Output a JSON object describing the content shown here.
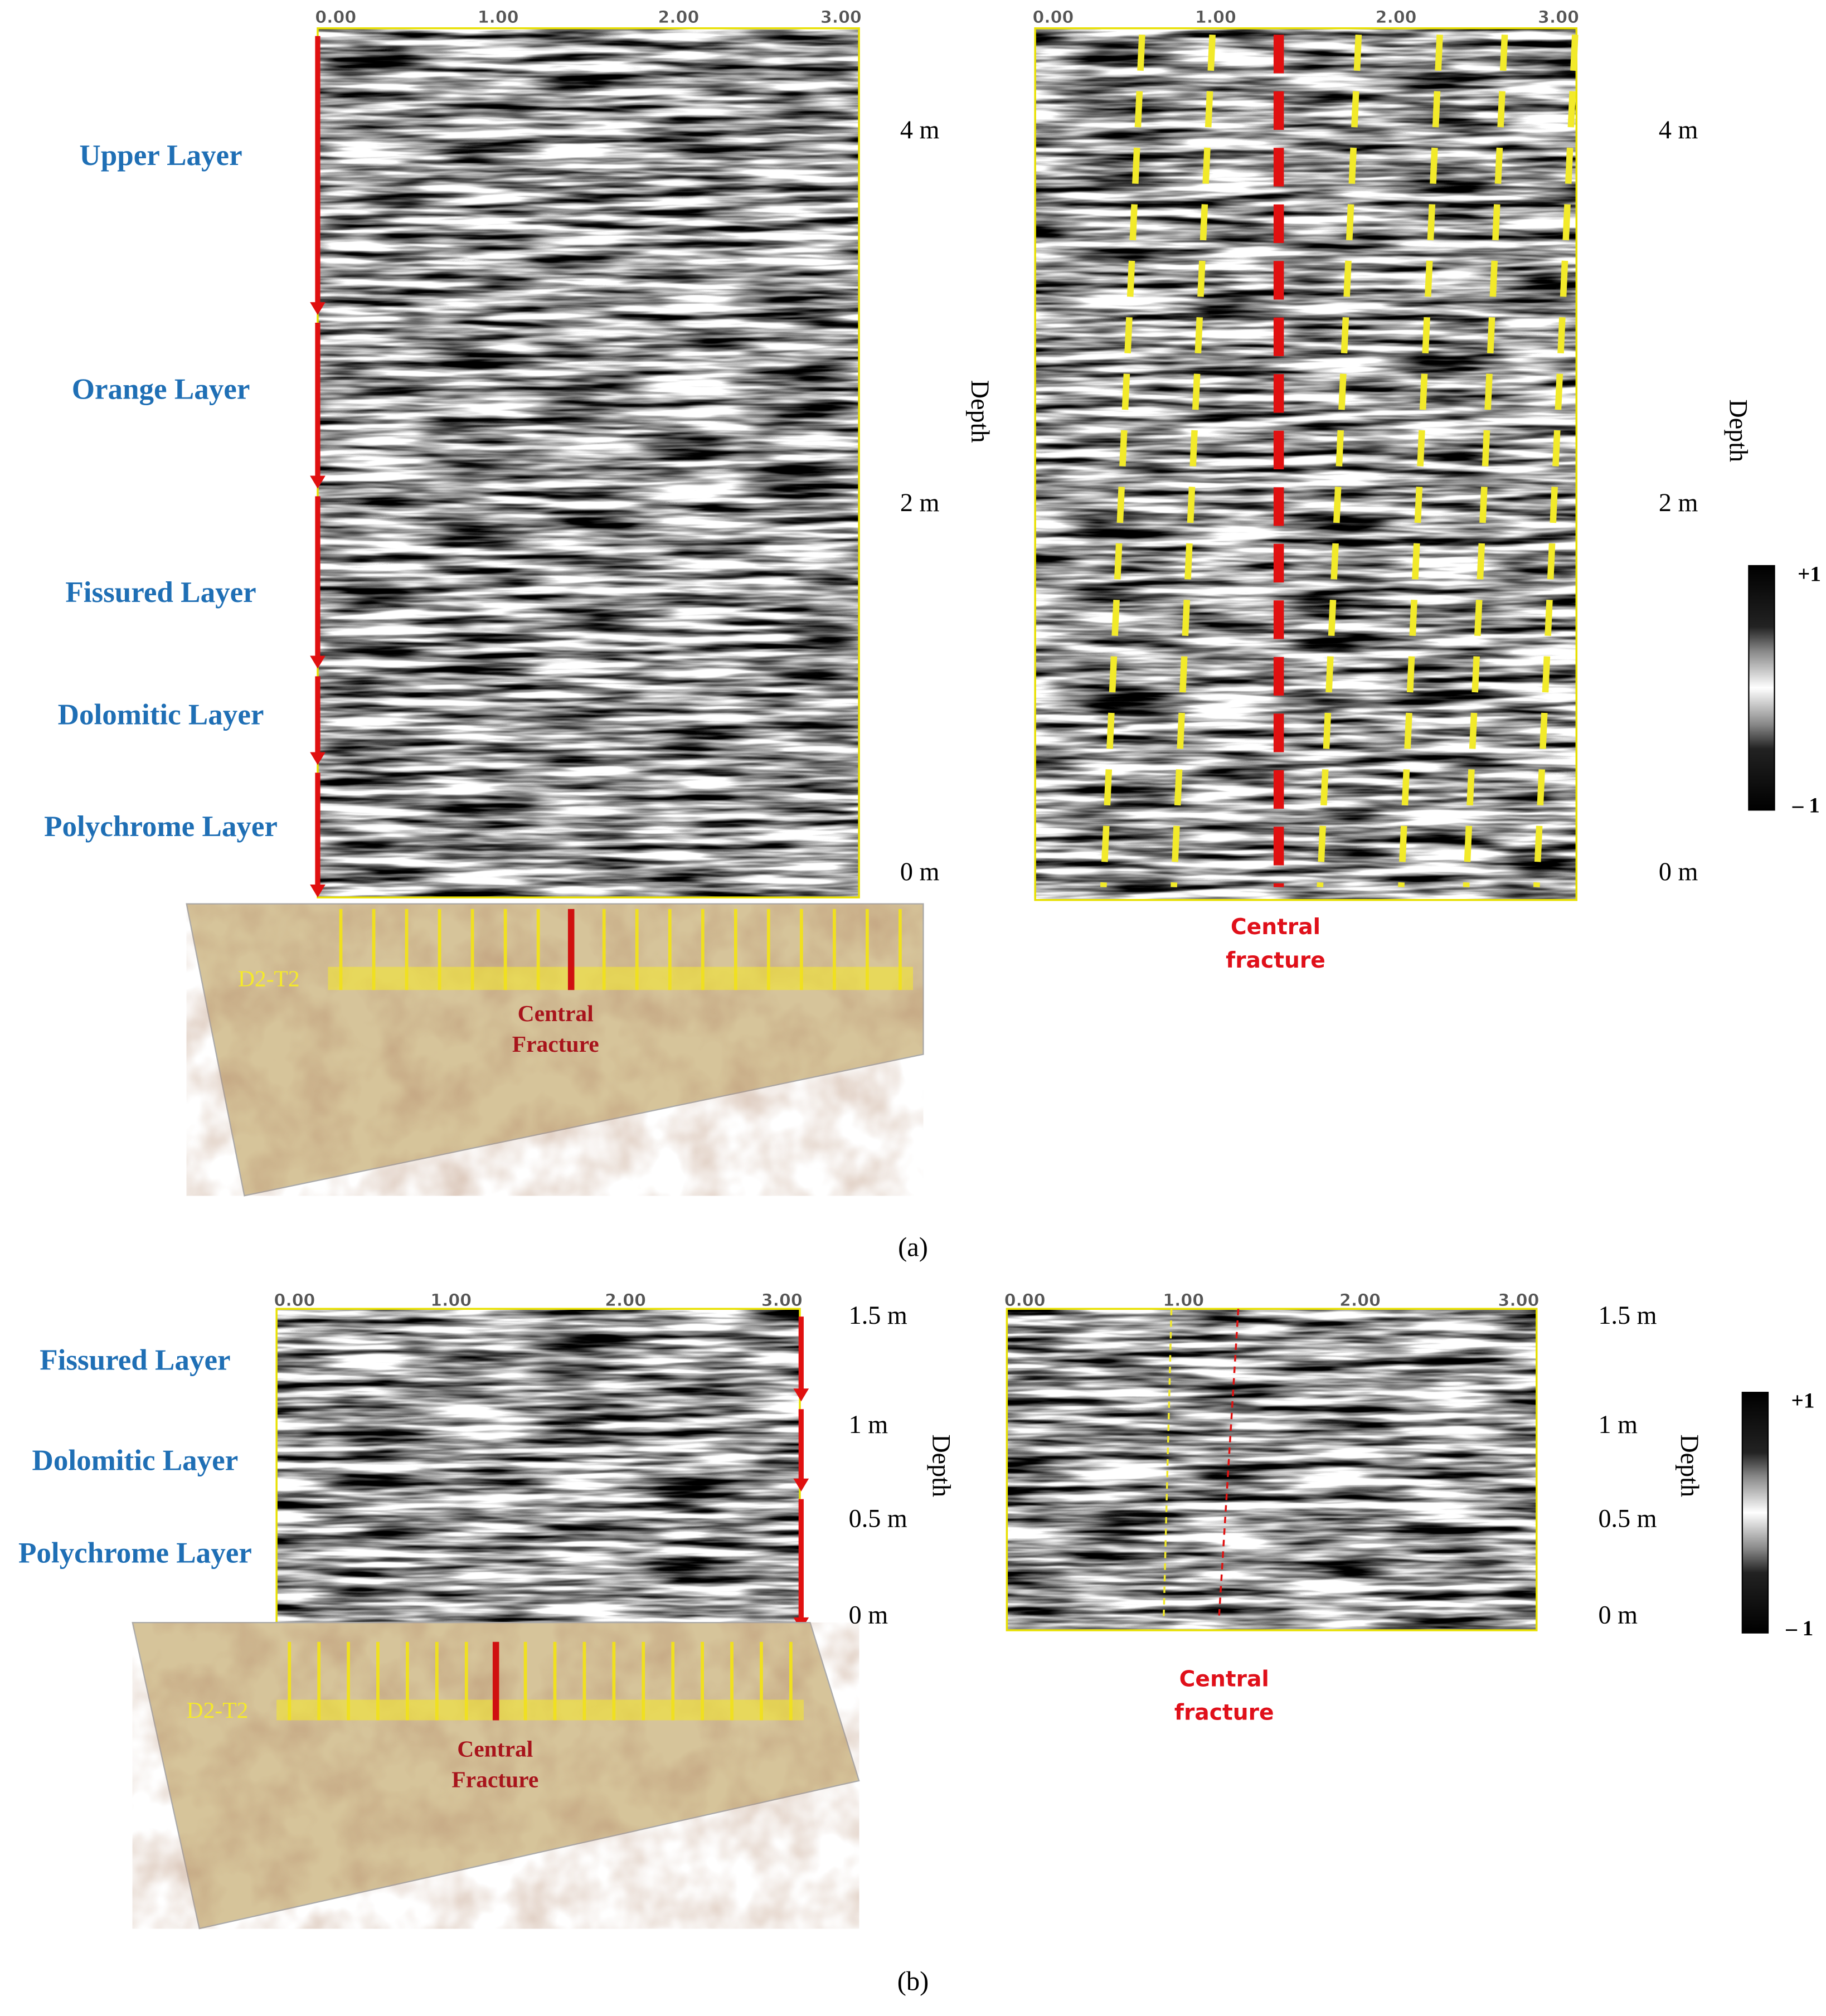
{
  "panels": [
    {
      "caption": "(a)",
      "layers": [
        "Upper Layer",
        "Orange Layer",
        "Fissured Layer",
        "Dolomitic Layer",
        "Polychrome Layer"
      ],
      "x_ticks": [
        "0.00",
        "1.00",
        "2.00",
        "3.00"
      ],
      "depth_labels": [
        "4 m",
        "2 m",
        "0 m"
      ],
      "depth_title": "Depth",
      "photo_label": "D2-T2",
      "photo_fracture": [
        "Central",
        "Fracture"
      ],
      "fracture_label": [
        "Central",
        "fracture"
      ],
      "colorbar": [
        "+1",
        "– 1"
      ]
    },
    {
      "caption": "(b)",
      "layers": [
        "Fissured Layer",
        "Dolomitic Layer",
        "Polychrome Layer"
      ],
      "x_ticks": [
        "0.00",
        "1.00",
        "2.00",
        "3.00"
      ],
      "depth_labels": [
        "1.5 m",
        "1 m",
        "0.5 m",
        "0 m"
      ],
      "depth_title": "Depth",
      "photo_label": "D2-T2",
      "photo_fracture": [
        "Central",
        "Fracture"
      ],
      "fracture_label": [
        "Central",
        "fracture"
      ],
      "colorbar": [
        "+1",
        "– 1"
      ]
    }
  ]
}
